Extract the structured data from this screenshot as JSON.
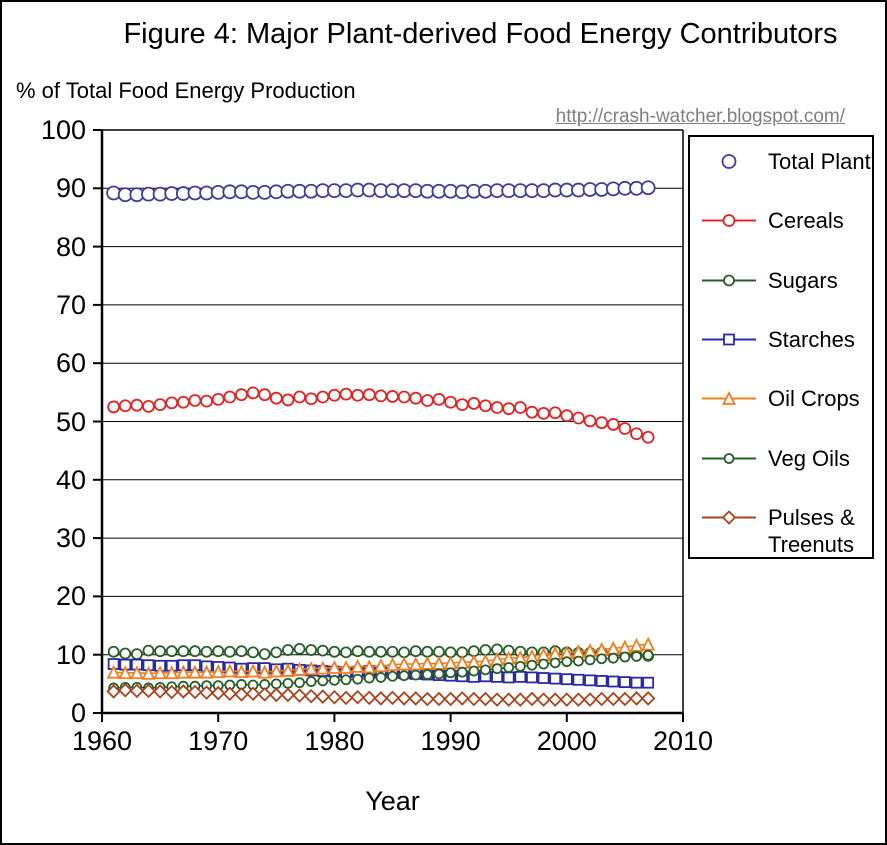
{
  "figure": {
    "title": "Figure 4: Major Plant-derived Food Energy Contributors",
    "y_axis_note": "% of Total Food Energy Production",
    "watermark": "http://crash-watcher.blogspot.com/",
    "xlabel": "Year"
  },
  "colors": {
    "total_plant": "#3C3C9C",
    "cereals": "#E02424",
    "sugars": "#275E27",
    "starches": "#2929A3",
    "oil_crops": "#F07D21",
    "veg_oils": "#275E27",
    "pulses_treenuts": "#A8431E",
    "gridline": "#000000",
    "watermark_text": "#7f7f7f"
  },
  "chart_data": {
    "type": "line",
    "title": "Figure 4: Major Plant-derived Food Energy Contributors",
    "ylabel": "% of Total Food Energy Production",
    "xlabel": "Year",
    "xlim": [
      1960,
      2010
    ],
    "ylim": [
      0,
      100
    ],
    "xticks": [
      1960,
      1970,
      1980,
      1990,
      2000,
      2010
    ],
    "yticks": [
      0,
      10,
      20,
      30,
      40,
      50,
      60,
      70,
      80,
      90,
      100
    ],
    "grid": "horizontal",
    "legend_position": "right",
    "x": [
      1961,
      1962,
      1963,
      1964,
      1965,
      1966,
      1967,
      1968,
      1969,
      1970,
      1971,
      1972,
      1973,
      1974,
      1975,
      1976,
      1977,
      1978,
      1979,
      1980,
      1981,
      1982,
      1983,
      1984,
      1985,
      1986,
      1987,
      1988,
      1989,
      1990,
      1991,
      1992,
      1993,
      1994,
      1995,
      1996,
      1997,
      1998,
      1999,
      2000,
      2001,
      2002,
      2003,
      2004,
      2005,
      2006,
      2007
    ],
    "series": [
      {
        "name": "Total Plant",
        "color": "#3C3C9C",
        "marker": "circle",
        "marker_size": 13,
        "line": false,
        "values": [
          89.2,
          88.9,
          88.9,
          89.0,
          89.0,
          89.1,
          89.1,
          89.2,
          89.2,
          89.3,
          89.4,
          89.4,
          89.3,
          89.3,
          89.4,
          89.5,
          89.5,
          89.5,
          89.6,
          89.6,
          89.6,
          89.7,
          89.7,
          89.6,
          89.6,
          89.6,
          89.6,
          89.5,
          89.5,
          89.5,
          89.4,
          89.5,
          89.5,
          89.6,
          89.6,
          89.6,
          89.6,
          89.6,
          89.7,
          89.7,
          89.7,
          89.8,
          89.8,
          89.9,
          90.0,
          90.0,
          90.1
        ]
      },
      {
        "name": "Cereals",
        "color": "#E02424",
        "marker": "circle",
        "marker_size": 11,
        "line": true,
        "values": [
          52.5,
          52.7,
          52.8,
          52.6,
          52.9,
          53.2,
          53.3,
          53.6,
          53.5,
          53.8,
          54.2,
          54.6,
          54.9,
          54.6,
          54.0,
          53.7,
          54.2,
          53.9,
          54.2,
          54.5,
          54.7,
          54.5,
          54.6,
          54.4,
          54.3,
          54.2,
          54.0,
          53.6,
          53.8,
          53.3,
          52.9,
          53.1,
          52.7,
          52.4,
          52.2,
          52.4,
          51.6,
          51.4,
          51.5,
          51.0,
          50.6,
          50.1,
          49.8,
          49.5,
          48.8,
          47.9,
          47.3
        ]
      },
      {
        "name": "Sugars",
        "color": "#275E27",
        "marker": "circle",
        "marker_size": 10,
        "line": true,
        "values": [
          10.5,
          10.2,
          10.1,
          10.7,
          10.6,
          10.6,
          10.6,
          10.6,
          10.5,
          10.6,
          10.5,
          10.6,
          10.4,
          10.1,
          10.4,
          10.8,
          11.0,
          10.8,
          10.7,
          10.5,
          10.4,
          10.6,
          10.5,
          10.5,
          10.5,
          10.4,
          10.6,
          10.5,
          10.5,
          10.4,
          10.4,
          10.6,
          10.8,
          10.9,
          10.7,
          10.5,
          10.4,
          10.4,
          10.6,
          10.4,
          10.3,
          10.3,
          10.4,
          10.2,
          10.0,
          9.9,
          9.8
        ]
      },
      {
        "name": "Starches",
        "color": "#2929A3",
        "marker": "square",
        "marker_size": 10,
        "line": true,
        "values": [
          8.4,
          8.3,
          8.3,
          8.2,
          8.1,
          8.1,
          8.2,
          8.2,
          8.0,
          7.9,
          7.8,
          7.6,
          7.7,
          7.7,
          7.5,
          7.6,
          7.4,
          7.3,
          7.2,
          7.1,
          7.0,
          7.1,
          7.2,
          7.0,
          6.9,
          6.8,
          6.7,
          6.6,
          6.5,
          6.4,
          6.3,
          6.2,
          6.3,
          6.2,
          6.1,
          6.2,
          6.1,
          6.0,
          5.9,
          5.8,
          5.7,
          5.6,
          5.5,
          5.4,
          5.3,
          5.2,
          5.2
        ]
      },
      {
        "name": "Oil Crops",
        "color": "#F07D21",
        "marker": "triangle",
        "marker_size": 11,
        "line": true,
        "values": [
          7.0,
          6.9,
          6.9,
          6.8,
          6.9,
          6.9,
          7.0,
          7.0,
          7.0,
          7.1,
          7.2,
          7.1,
          7.2,
          7.0,
          7.2,
          7.3,
          7.5,
          7.6,
          7.7,
          7.8,
          7.8,
          8.0,
          7.9,
          8.1,
          8.3,
          8.4,
          8.4,
          8.5,
          8.5,
          8.6,
          8.7,
          8.8,
          8.9,
          9.2,
          9.4,
          9.5,
          9.7,
          10.0,
          10.2,
          10.3,
          10.5,
          10.7,
          10.9,
          11.1,
          11.3,
          11.6,
          11.8
        ]
      },
      {
        "name": "Veg Oils",
        "color": "#275E27",
        "marker": "circle",
        "marker_size": 9,
        "line": true,
        "values": [
          4.3,
          4.4,
          4.4,
          4.3,
          4.4,
          4.5,
          4.6,
          4.6,
          4.7,
          4.7,
          4.8,
          4.9,
          4.8,
          4.9,
          5.0,
          5.1,
          5.2,
          5.4,
          5.5,
          5.6,
          5.7,
          5.8,
          6.0,
          6.1,
          6.3,
          6.4,
          6.5,
          6.6,
          6.7,
          6.9,
          7.0,
          7.2,
          7.4,
          7.6,
          7.8,
          8.0,
          8.2,
          8.4,
          8.6,
          8.8,
          8.9,
          9.1,
          9.3,
          9.4,
          9.6,
          9.7,
          9.9
        ]
      },
      {
        "name": "Pulses & Treenuts",
        "color": "#A8431E",
        "marker": "diamond",
        "marker_size": 10,
        "line": true,
        "values": [
          3.7,
          3.9,
          3.8,
          3.8,
          3.7,
          3.6,
          3.7,
          3.6,
          3.5,
          3.4,
          3.3,
          3.2,
          3.3,
          3.2,
          3.1,
          3.1,
          3.0,
          2.9,
          2.8,
          2.7,
          2.6,
          2.7,
          2.6,
          2.5,
          2.6,
          2.5,
          2.5,
          2.4,
          2.4,
          2.4,
          2.5,
          2.4,
          2.4,
          2.3,
          2.3,
          2.3,
          2.4,
          2.3,
          2.3,
          2.3,
          2.3,
          2.3,
          2.4,
          2.4,
          2.4,
          2.5,
          2.5
        ]
      }
    ]
  }
}
